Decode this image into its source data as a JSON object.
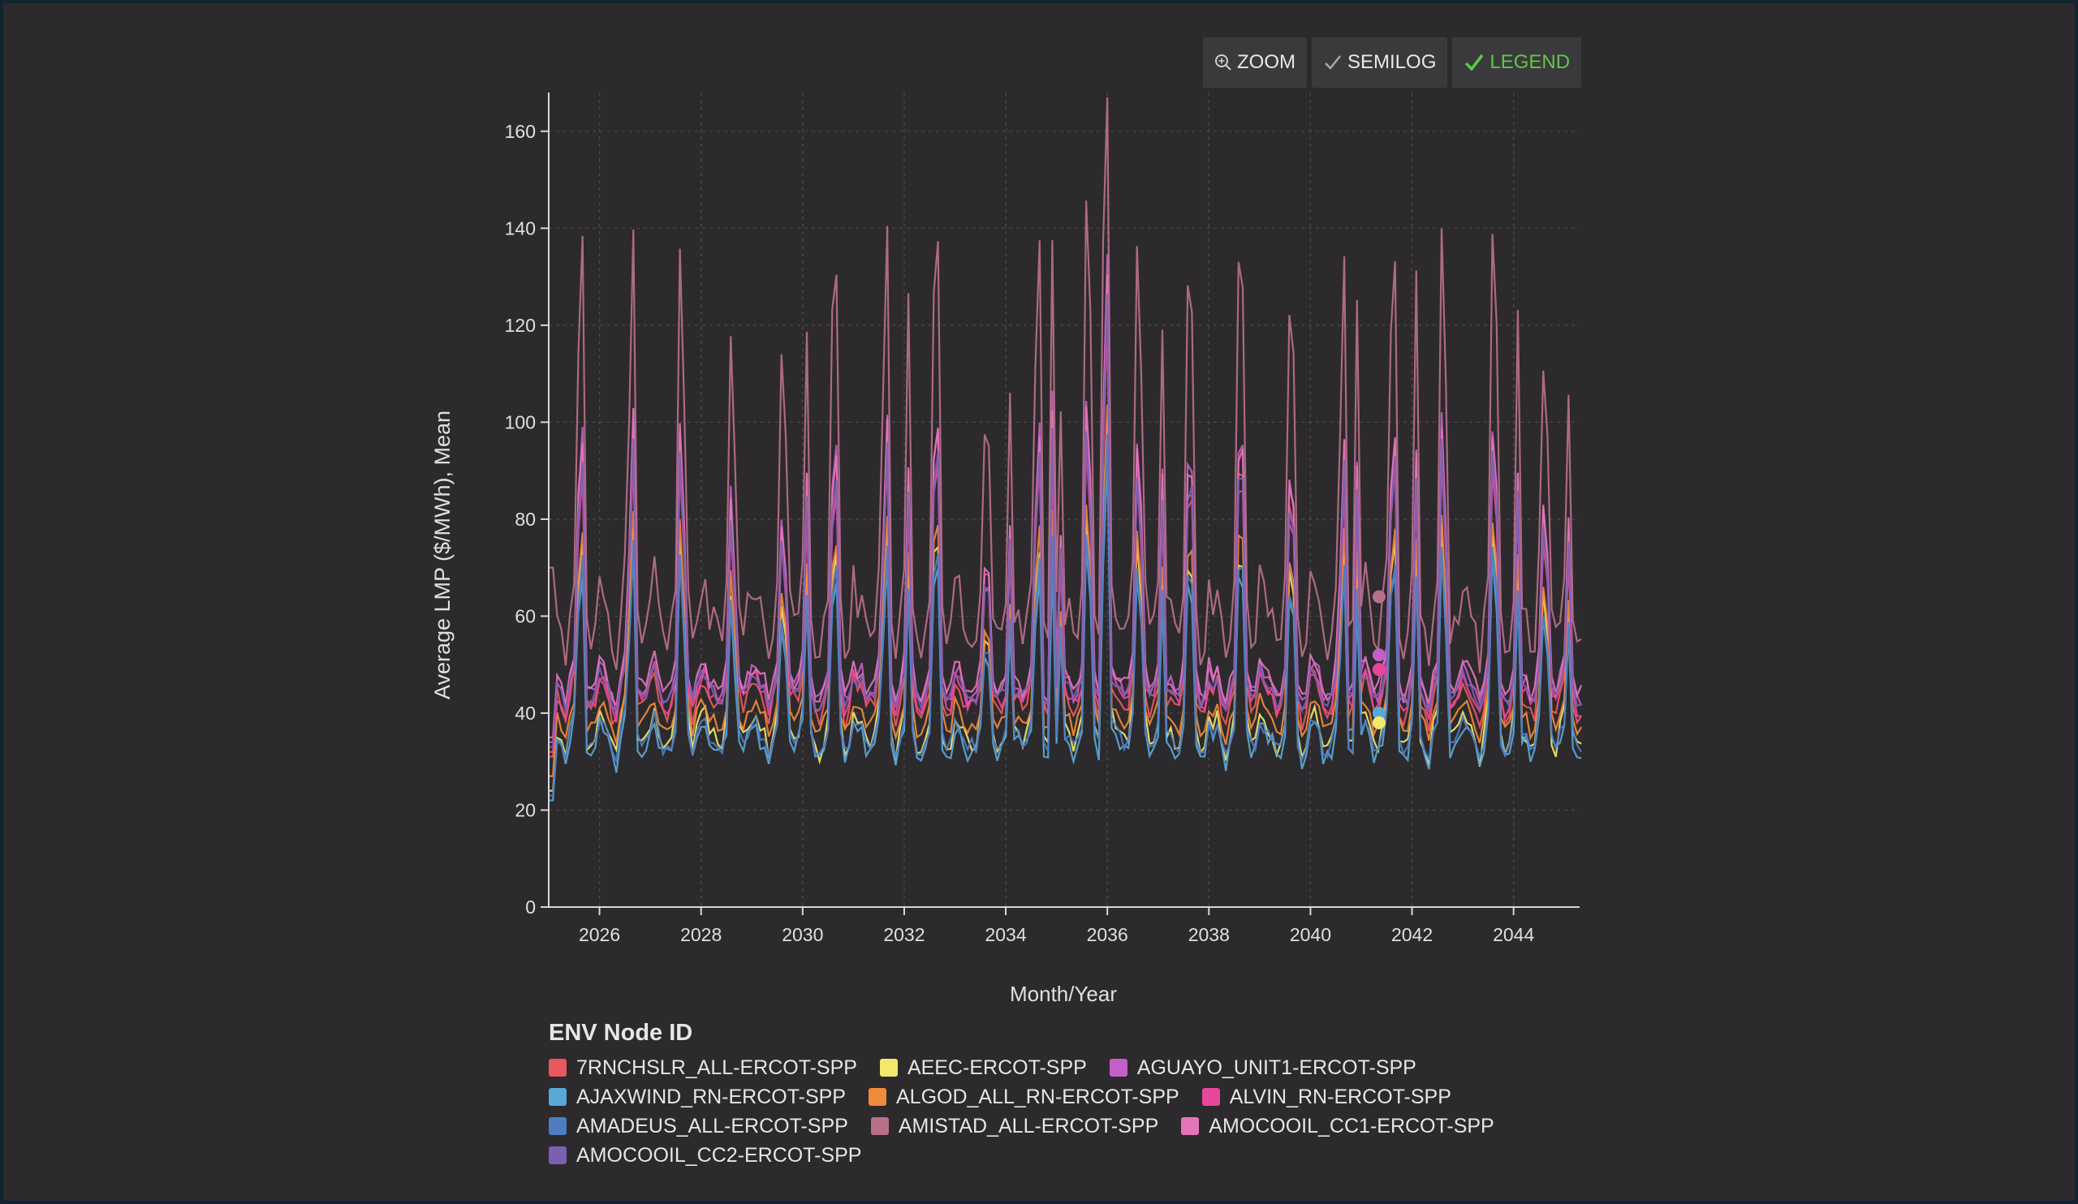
{
  "toolbar": {
    "zoom_label": "ZOOM",
    "semilog_label": "SEMILOG",
    "legend_label": "LEGEND"
  },
  "colors": {
    "background": "#2c2a2c",
    "axis": "#d8d8d8",
    "grid": "#4a484a",
    "legend_active": "#61c64a"
  },
  "chart_data": {
    "type": "line",
    "xlabel": "Month/Year",
    "ylabel": "Average LMP ($/MWh), Mean",
    "xlim": [
      2025.0,
      2045.3
    ],
    "ylim": [
      0,
      168
    ],
    "x_ticks": [
      2026,
      2028,
      2030,
      2032,
      2034,
      2036,
      2038,
      2040,
      2042,
      2044
    ],
    "y_ticks": [
      0,
      20,
      40,
      60,
      80,
      100,
      120,
      140,
      160
    ],
    "grid": true,
    "legend_title": "ENV Node ID",
    "legend_placement": "bottom",
    "series": [
      {
        "name": "7RNCHSLR_ALL-ERCOT-SPP",
        "color": "#e8585c",
        "base": 43,
        "amp": 8,
        "spike": 1.05
      },
      {
        "name": "AEEC-ERCOT-SPP",
        "color": "#f2e86a",
        "base": 36,
        "amp": 8,
        "spike": 0.8
      },
      {
        "name": "AGUAYO_UNIT1-ERCOT-SPP",
        "color": "#c25fc8",
        "base": 46,
        "amp": 7,
        "spike": 1.15
      },
      {
        "name": "AJAXWIND_RN-ERCOT-SPP",
        "color": "#5aa8d6",
        "base": 34,
        "amp": 7,
        "spike": 0.75
      },
      {
        "name": "ALGOD_ALL_RN-ERCOT-SPP",
        "color": "#f08a3c",
        "base": 39,
        "amp": 6,
        "spike": 0.85
      },
      {
        "name": "ALVIN_RN-ERCOT-SPP",
        "color": "#e8469a",
        "base": 44,
        "amp": 7,
        "spike": 1.0
      },
      {
        "name": "AMADEUS_ALL-ERCOT-SPP",
        "color": "#4f7cc0",
        "base": 35,
        "amp": 6,
        "spike": 0.8
      },
      {
        "name": "AMISTAD_ALL-ERCOT-SPP",
        "color": "#b8708a",
        "base": 60,
        "amp": 14,
        "spike": 1.6
      },
      {
        "name": "AMOCOOIL_CC1-ERCOT-SPP",
        "color": "#e474b8",
        "base": 47,
        "amp": 7,
        "spike": 1.1
      },
      {
        "name": "AMOCOOIL_CC2-ERCOT-SPP",
        "color": "#7b5fb0",
        "base": 45,
        "amp": 6,
        "spike": 1.05
      }
    ],
    "hover_x": 2041.35,
    "hover_points": [
      {
        "series": "AMISTAD_ALL-ERCOT-SPP",
        "y": 64
      },
      {
        "series": "AGUAYO_UNIT1-ERCOT-SPP",
        "y": 52
      },
      {
        "series": "ALVIN_RN-ERCOT-SPP",
        "y": 49
      },
      {
        "series": "AJAXWIND_RN-ERCOT-SPP",
        "y": 40
      },
      {
        "series": "AEEC-ERCOT-SPP",
        "y": 38
      }
    ]
  }
}
